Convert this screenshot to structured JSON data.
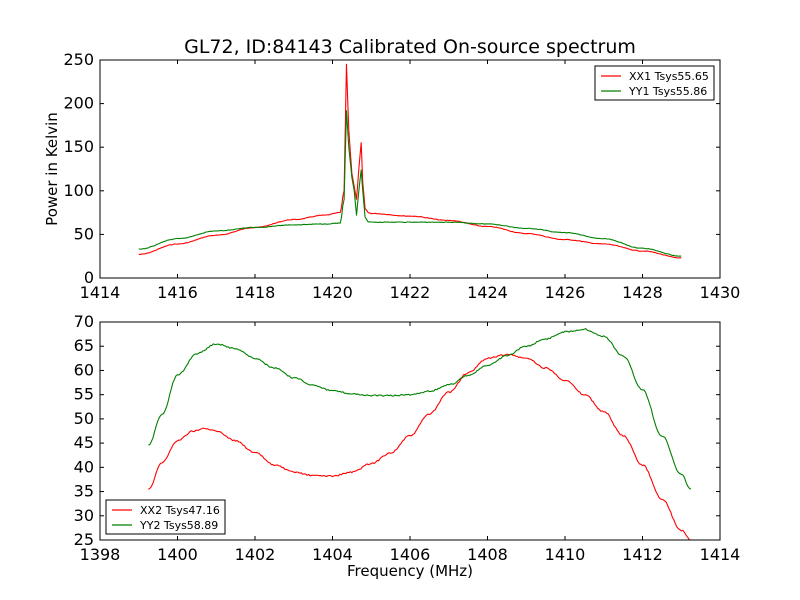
{
  "figure_title": "GL72, ID:84143 Calibrated On-source spectrum",
  "colors": {
    "red": "#ff0000",
    "green": "#008000"
  },
  "chart_data": [
    {
      "type": "line",
      "panel": "top",
      "title": "GL72, ID:84143 Calibrated On-source spectrum",
      "xlabel": "",
      "ylabel": "Power in Kelvin",
      "xlim": [
        1414,
        1430
      ],
      "ylim": [
        0,
        250
      ],
      "xticks": [
        1414,
        1416,
        1418,
        1420,
        1422,
        1424,
        1426,
        1428,
        1430
      ],
      "yticks": [
        0,
        50,
        100,
        150,
        200,
        250
      ],
      "grid": false,
      "legend_position": "top-right",
      "series": [
        {
          "name": "XX1 Tsys55.65",
          "color": "#ff0000",
          "x": [
            1415,
            1416,
            1417,
            1418,
            1419,
            1419.8,
            1420.2,
            1420.3,
            1420.36,
            1420.42,
            1420.5,
            1420.56,
            1420.62,
            1420.68,
            1420.74,
            1420.78,
            1420.84,
            1420.92,
            1421,
            1422,
            1423,
            1424,
            1425,
            1426,
            1427,
            1428,
            1429
          ],
          "y": [
            27,
            39,
            49,
            58,
            67,
            72,
            75,
            100,
            245,
            170,
            120,
            105,
            90,
            125,
            155,
            110,
            80,
            75,
            74,
            71,
            66,
            59,
            51,
            44,
            39,
            31,
            23
          ]
        },
        {
          "name": "YY1 Tsys55.86",
          "color": "#008000",
          "x": [
            1415,
            1416,
            1417,
            1418,
            1419,
            1419.8,
            1420.2,
            1420.3,
            1420.36,
            1420.42,
            1420.5,
            1420.56,
            1420.62,
            1420.68,
            1420.74,
            1420.78,
            1420.84,
            1420.92,
            1421,
            1422,
            1423,
            1424,
            1425,
            1426,
            1427,
            1428,
            1429
          ],
          "y": [
            33,
            45,
            54,
            58,
            61,
            62,
            63,
            90,
            192,
            150,
            115,
            100,
            72,
            100,
            124,
            100,
            70,
            64,
            64,
            64,
            64,
            62,
            57,
            52,
            45,
            34,
            25
          ]
        }
      ]
    },
    {
      "type": "line",
      "panel": "bottom",
      "title": "",
      "xlabel": "Frequency (MHz)",
      "ylabel": "",
      "xlim": [
        1398,
        1414
      ],
      "ylim": [
        25,
        70
      ],
      "xticks": [
        1398,
        1400,
        1402,
        1404,
        1406,
        1408,
        1410,
        1412,
        1414
      ],
      "yticks": [
        25,
        30,
        35,
        40,
        45,
        50,
        55,
        60,
        65,
        70
      ],
      "grid": false,
      "legend_position": "bottom-left",
      "series": [
        {
          "name": "XX2 Tsys47.16",
          "color": "#ff0000",
          "x": [
            1399.25,
            1399.6,
            1400,
            1400.4,
            1400.7,
            1401,
            1401.5,
            1402,
            1402.5,
            1403,
            1403.5,
            1404,
            1404.5,
            1405,
            1405.5,
            1406,
            1406.5,
            1407,
            1407.5,
            1408,
            1408.5,
            1409,
            1409.5,
            1410,
            1410.5,
            1411,
            1411.5,
            1412,
            1412.5,
            1413,
            1413.25
          ],
          "y": [
            35.5,
            41,
            45.5,
            47.5,
            48,
            47.5,
            45.5,
            43,
            40.5,
            39,
            38.3,
            38.2,
            39,
            40.8,
            43,
            46.5,
            51,
            55.5,
            59.5,
            62.5,
            63.3,
            62.5,
            60.5,
            58,
            55,
            51.5,
            46.5,
            40.5,
            33.5,
            27,
            25
          ]
        },
        {
          "name": "YY2 Tsys58.89",
          "color": "#008000",
          "x": [
            1399.25,
            1399.6,
            1400,
            1400.5,
            1401,
            1401.5,
            1402,
            1402.5,
            1403,
            1403.5,
            1404,
            1404.5,
            1405,
            1405.5,
            1406,
            1406.5,
            1407,
            1407.5,
            1408,
            1408.5,
            1409,
            1409.5,
            1410,
            1410.5,
            1411,
            1411.5,
            1412,
            1412.5,
            1413,
            1413.25
          ],
          "y": [
            44.5,
            51,
            59,
            63.5,
            65.5,
            64.5,
            62.5,
            60.5,
            58.5,
            57,
            55.8,
            55.2,
            54.8,
            54.8,
            55,
            55.7,
            57,
            59,
            61,
            63,
            65,
            66.5,
            68,
            68.5,
            67,
            63,
            56,
            46.5,
            38.5,
            35.5
          ]
        }
      ]
    }
  ]
}
